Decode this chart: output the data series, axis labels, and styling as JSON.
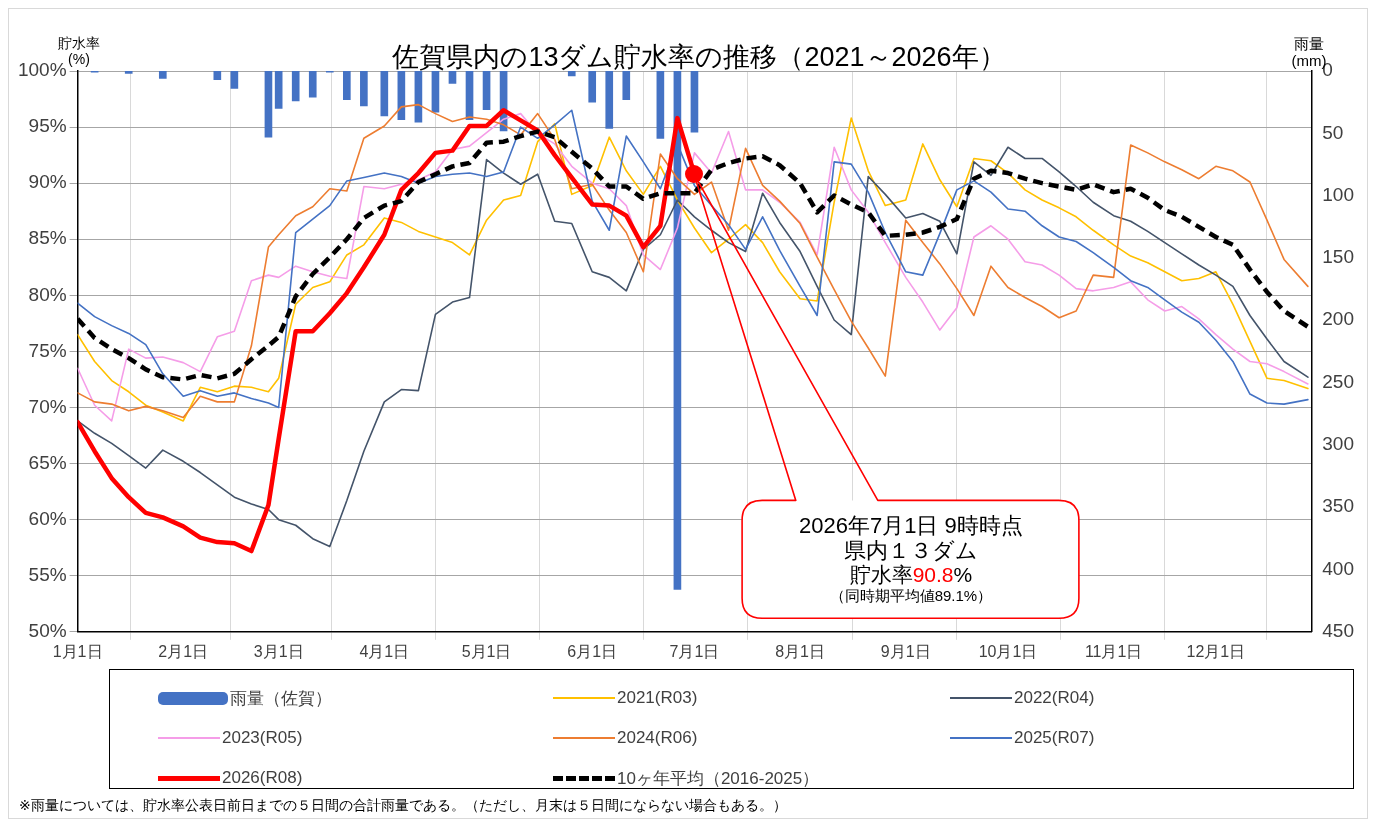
{
  "chart_data": {
    "type": "line",
    "title": "佐賀県内の13ダム貯水率の推移（2021～2026年）",
    "ylabel": "貯水率\n(%)",
    "y2label": "雨量\n(mm)",
    "x": [
      "--01-01",
      "--01-06",
      "--01-11",
      "--01-16",
      "--01-21",
      "--01-26",
      "--02-01",
      "--02-06",
      "--02-11",
      "--02-16",
      "--02-21",
      "--02-26",
      "--03-01",
      "--03-06",
      "--03-11",
      "--03-16",
      "--03-21",
      "--03-26",
      "--04-01",
      "--04-06",
      "--04-11",
      "--04-16",
      "--04-21",
      "--04-26",
      "--05-01",
      "--05-06",
      "--05-11",
      "--05-16",
      "--05-21",
      "--05-26",
      "--06-01",
      "--06-06",
      "--06-11",
      "--06-16",
      "--06-21",
      "--06-26",
      "--07-01",
      "--07-06",
      "--07-11",
      "--07-16",
      "--07-21",
      "--07-26",
      "--08-01",
      "--08-06",
      "--08-11",
      "--08-16",
      "--08-21",
      "--08-26",
      "--09-01",
      "--09-06",
      "--09-11",
      "--09-16",
      "--09-21",
      "--09-26",
      "--10-01",
      "--10-06",
      "--10-11",
      "--10-16",
      "--10-21",
      "--10-26",
      "--11-01",
      "--11-06",
      "--11-11",
      "--11-16",
      "--11-21",
      "--11-26",
      "--12-01",
      "--12-06",
      "--12-11",
      "--12-16",
      "--12-21",
      "--12-28"
    ],
    "xlim": [
      "--01-01",
      "--12-29"
    ],
    "xticks": [
      {
        "value": "--01-01",
        "label": "1月1日"
      },
      {
        "value": "--02-01",
        "label": "2月1日"
      },
      {
        "value": "--03-01",
        "label": "3月1日"
      },
      {
        "value": "--04-01",
        "label": "4月1日"
      },
      {
        "value": "--05-01",
        "label": "5月1日"
      },
      {
        "value": "--06-01",
        "label": "6月1日"
      },
      {
        "value": "--07-01",
        "label": "7月1日"
      },
      {
        "value": "--08-01",
        "label": "8月1日"
      },
      {
        "value": "--09-01",
        "label": "9月1日"
      },
      {
        "value": "--10-01",
        "label": "10月1日"
      },
      {
        "value": "--11-01",
        "label": "11月1日"
      },
      {
        "value": "--12-01",
        "label": "12月1日"
      }
    ],
    "ylim": [
      50,
      100
    ],
    "yticks": [
      {
        "value": 50,
        "label": "50%"
      },
      {
        "value": 55,
        "label": "55%"
      },
      {
        "value": 60,
        "label": "60%"
      },
      {
        "value": 65,
        "label": "65%"
      },
      {
        "value": 70,
        "label": "70%"
      },
      {
        "value": 75,
        "label": "75%"
      },
      {
        "value": 80,
        "label": "80%"
      },
      {
        "value": 85,
        "label": "85%"
      },
      {
        "value": 90,
        "label": "90%"
      },
      {
        "value": 95,
        "label": "95%"
      },
      {
        "value": 100,
        "label": "100%"
      }
    ],
    "y2lim": [
      450,
      0
    ],
    "y2ticks": [
      0,
      50,
      100,
      150,
      200,
      250,
      300,
      350,
      400,
      450
    ],
    "grid": true,
    "legend": "bottom",
    "series": [
      {
        "name": "雨量（佐賀）",
        "type": "bar",
        "axis": "y2",
        "color": "#4472c4",
        "x": [
          "--01-06",
          "--01-16",
          "--01-26",
          "--02-11",
          "--02-16",
          "--02-26",
          "--03-01",
          "--03-06",
          "--03-11",
          "--03-16",
          "--03-21",
          "--03-26",
          "--04-01",
          "--04-06",
          "--04-11",
          "--04-16",
          "--04-21",
          "--04-26",
          "--05-01",
          "--05-06",
          "--05-26",
          "--06-01",
          "--06-06",
          "--06-11",
          "--06-21",
          "--06-26",
          "--07-01"
        ],
        "values": [
          1,
          2,
          6,
          7,
          14,
          53,
          30,
          24,
          21,
          1,
          23,
          28,
          36,
          39,
          41,
          33,
          10,
          39,
          31,
          48,
          4,
          25,
          46,
          23,
          54,
          416,
          49
        ]
      },
      {
        "name": "2021(R03)",
        "color": "#ffc000",
        "values": [
          76.5,
          74.1,
          72.4,
          71.4,
          70.2,
          69.6,
          68.8,
          71.8,
          71.4,
          71.9,
          71.8,
          71.4,
          72.6,
          79.2,
          80.7,
          81.2,
          83.6,
          84.5,
          86.9,
          86.5,
          85.7,
          85.2,
          84.7,
          83.6,
          86.7,
          88.5,
          88.9,
          93.7,
          95.3,
          89.0,
          89.8,
          94.1,
          91.1,
          89.0,
          91.5,
          88.5,
          86.0,
          83.8,
          85.0,
          86.3,
          84.7,
          82.1,
          79.7,
          79.5,
          88.3,
          95.8,
          91.1,
          88.0,
          88.5,
          93.5,
          90.3,
          87.9,
          92.2,
          92.0,
          90.9,
          89.4,
          88.5,
          87.8,
          87.0,
          85.8,
          84.5,
          83.5,
          82.9,
          82.1,
          81.3,
          81.5,
          82.1,
          79.2,
          75.9,
          72.6,
          72.4,
          71.7
        ]
      },
      {
        "name": "2022(R04)",
        "color": "#44546a",
        "values": [
          68.8,
          67.7,
          66.8,
          65.7,
          64.6,
          66.2,
          65.2,
          64.2,
          63.1,
          62.0,
          61.4,
          60.9,
          60.0,
          59.5,
          58.3,
          57.6,
          61.7,
          66.1,
          70.5,
          71.6,
          71.5,
          78.3,
          79.4,
          79.8,
          92.1,
          90.9,
          89.9,
          90.8,
          86.6,
          86.4,
          82.1,
          81.6,
          80.4,
          84.1,
          85.4,
          88.5,
          87.0,
          85.8,
          84.7,
          83.9,
          89.1,
          86.5,
          83.9,
          80.8,
          77.8,
          76.5,
          90.6,
          89.0,
          86.9,
          87.3,
          86.6,
          83.7,
          91.9,
          90.7,
          93.2,
          92.2,
          92.2,
          91.0,
          89.7,
          88.3,
          87.1,
          86.6,
          85.7,
          84.7,
          83.7,
          82.7,
          81.8,
          80.8,
          78.2,
          76.1,
          74.1,
          72.7
        ]
      },
      {
        "name": "2023(R05)",
        "color": "#f59de8",
        "values": [
          73.5,
          70.2,
          68.8,
          75.2,
          74.4,
          74.5,
          74.0,
          73.2,
          76.3,
          76.8,
          81.3,
          81.8,
          81.6,
          82.6,
          82.1,
          81.7,
          81.5,
          89.7,
          89.5,
          89.9,
          90.3,
          91.0,
          93.0,
          93.3,
          94.5,
          95.7,
          96.2,
          94.4,
          93.5,
          91.5,
          90.0,
          89.5,
          88.0,
          83.6,
          82.3,
          86.0,
          92.7,
          90.9,
          94.6,
          89.4,
          89.4,
          88.3,
          86.5,
          83.6,
          93.2,
          89.4,
          87.4,
          84.7,
          81.6,
          79.4,
          76.9,
          78.9,
          85.2,
          86.2,
          85.0,
          83.0,
          82.7,
          81.8,
          80.6,
          80.4,
          80.7,
          81.2,
          79.6,
          78.6,
          79.0,
          77.9,
          76.5,
          75.2,
          74.1,
          73.9,
          73.2,
          72.1
        ]
      },
      {
        "name": "2024(R06)",
        "color": "#ed7d31",
        "values": [
          71.3,
          70.5,
          70.3,
          69.7,
          70.1,
          69.7,
          69.1,
          71.0,
          70.5,
          70.5,
          75.5,
          84.3,
          85.4,
          87.1,
          87.9,
          89.5,
          89.3,
          94.0,
          95.1,
          96.8,
          97.0,
          96.2,
          95.5,
          95.9,
          95.7,
          95.2,
          94.3,
          96.2,
          93.9,
          89.5,
          89.9,
          87.6,
          85.6,
          82.1,
          92.6,
          90.4,
          89.0,
          90.1,
          85.8,
          93.1,
          89.8,
          88.4,
          86.4,
          83.4,
          80.5,
          77.7,
          75.3,
          72.8,
          86.7,
          84.7,
          82.8,
          80.6,
          78.2,
          82.6,
          80.7,
          79.8,
          79.0,
          78.0,
          78.6,
          81.8,
          81.6,
          93.4,
          92.7,
          91.9,
          91.2,
          90.4,
          91.5,
          91.1,
          90.1,
          86.7,
          83.2,
          80.8
        ]
      },
      {
        "name": "2025(R07)",
        "color": "#4472c4",
        "values": [
          79.3,
          78.1,
          77.3,
          76.6,
          75.6,
          73.0,
          71.0,
          71.5,
          71.0,
          71.3,
          70.8,
          70.4,
          70.0,
          85.6,
          86.8,
          88.0,
          90.2,
          90.5,
          90.9,
          90.6,
          90.0,
          90.6,
          90.8,
          90.9,
          90.6,
          91.0,
          95.0,
          94.0,
          95.2,
          96.5,
          88.4,
          85.8,
          94.2,
          91.9,
          89.5,
          93.5,
          89.8,
          88.0,
          86.3,
          84.1,
          87.0,
          84.0,
          80.8,
          78.2,
          91.9,
          91.7,
          89.2,
          85.6,
          82.1,
          81.8,
          85.5,
          89.4,
          90.2,
          89.2,
          87.7,
          87.5,
          86.2,
          85.2,
          84.8,
          83.8,
          82.5,
          81.3,
          80.7,
          79.6,
          78.5,
          77.6,
          76.0,
          74.1,
          71.2,
          70.4,
          70.3,
          70.7
        ]
      },
      {
        "name": "2026(R08)",
        "color": "#ff0000",
        "x": [
          "--01-01",
          "--01-06",
          "--01-11",
          "--01-16",
          "--01-21",
          "--01-26",
          "--02-01",
          "--02-06",
          "--02-11",
          "--02-16",
          "--02-21",
          "--02-26",
          "--03-01",
          "--03-06",
          "--03-11",
          "--03-16",
          "--03-21",
          "--03-26",
          "--04-01",
          "--04-06",
          "--04-11",
          "--04-16",
          "--04-21",
          "--04-26",
          "--05-01",
          "--05-06",
          "--05-11",
          "--05-16",
          "--05-21",
          "--05-26",
          "--06-01",
          "--06-06",
          "--06-11",
          "--06-16",
          "--06-21",
          "--06-26",
          "--07-01"
        ],
        "values": [
          68.7,
          66.1,
          63.7,
          62.0,
          60.6,
          60.2,
          59.4,
          58.4,
          58.0,
          57.9,
          57.2,
          61.3,
          67.2,
          76.8,
          76.8,
          78.4,
          80.2,
          82.5,
          85.4,
          89.4,
          90.9,
          92.7,
          92.9,
          95.1,
          95.1,
          96.5,
          95.6,
          94.7,
          92.5,
          90.5,
          88.1,
          88.0,
          87.1,
          84.3,
          86.2,
          95.8,
          90.8
        ]
      },
      {
        "name": "10ヶ年平均（2016-2025）",
        "color": "#000000",
        "line_style": "dashed",
        "values": [
          77.9,
          76.2,
          75.2,
          74.4,
          73.4,
          72.7,
          72.5,
          72.9,
          72.6,
          73.0,
          74.3,
          75.5,
          76.3,
          79.9,
          81.9,
          83.4,
          85.0,
          86.9,
          88.0,
          88.4,
          90.1,
          90.8,
          91.5,
          91.8,
          93.6,
          93.7,
          94.2,
          94.6,
          94.1,
          92.8,
          91.3,
          89.7,
          89.7,
          88.6,
          89.1,
          89.1,
          89.1,
          91.2,
          91.8,
          92.2,
          92.4,
          91.6,
          90.0,
          87.4,
          88.9,
          88.1,
          87.4,
          85.3,
          85.4,
          85.6,
          86.1,
          86.8,
          90.4,
          91.1,
          90.9,
          90.4,
          90.0,
          89.7,
          89.4,
          89.9,
          89.2,
          89.5,
          88.7,
          87.6,
          87.0,
          86.1,
          85.2,
          84.5,
          82.3,
          80.3,
          78.6,
          77.2
        ]
      }
    ],
    "annotations": [
      "2026年7月1日 9時時点",
      "県内１３ダム",
      "貯水率90.8%",
      "（同時期平均値89.1%）",
      "※雨量については、貯水率公表日前日までの５日間の合計雨量である。（ただし、月末は５日間にならない場合もある。）"
    ]
  }
}
